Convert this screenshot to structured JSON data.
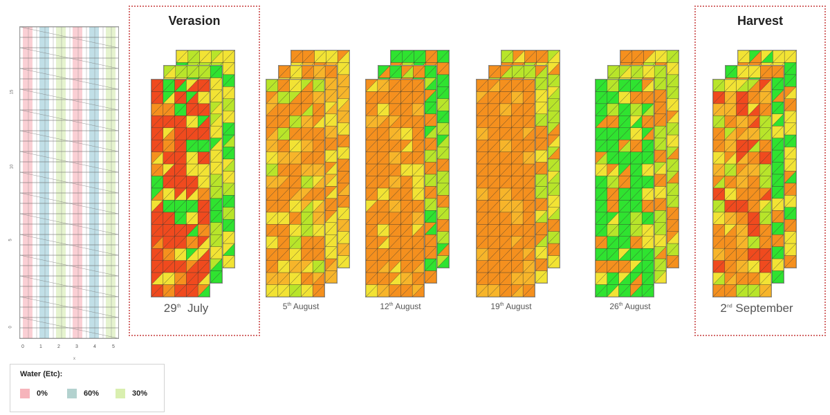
{
  "field_plot": {
    "y_ticks": [
      "0",
      "5",
      "10",
      "15"
    ],
    "x_ticks": [
      "0",
      "1",
      "2",
      "3",
      "4",
      "5"
    ],
    "x_axis_title": "x",
    "strip_colors": [
      "#f6a7b0",
      "#8ec5d4",
      "#cfe9a5",
      "#f6a7b0",
      "#8ec5d4",
      "#cfe9a5"
    ]
  },
  "legend": {
    "title": "Water (Etc):",
    "items": [
      {
        "label": "0%",
        "color": "#f6b4bb"
      },
      {
        "label": "60%",
        "color": "#b3d2cf"
      },
      {
        "label": "30%",
        "color": "#d9efaf"
      }
    ]
  },
  "stages": [
    {
      "title": "Verasion"
    },
    {
      "title": "Harvest"
    }
  ],
  "dates": [
    {
      "day": "29",
      "suffix": "th",
      "month": "July"
    },
    {
      "day": "5",
      "suffix": "th",
      "month": "August"
    },
    {
      "day": "12",
      "suffix": "th",
      "month": "August"
    },
    {
      "day": "19",
      "suffix": "th",
      "month": "August"
    },
    {
      "day": "26",
      "suffix": "th",
      "month": "August"
    },
    {
      "day": "2",
      "suffix": "nd",
      "month": "September"
    }
  ],
  "palette": {
    "red": "#f04a1e",
    "orange": "#f5901e",
    "light_orange": "#f7b52a",
    "yellow": "#f2e334",
    "yellow_green": "#b8e52a",
    "green": "#2fe330"
  }
}
